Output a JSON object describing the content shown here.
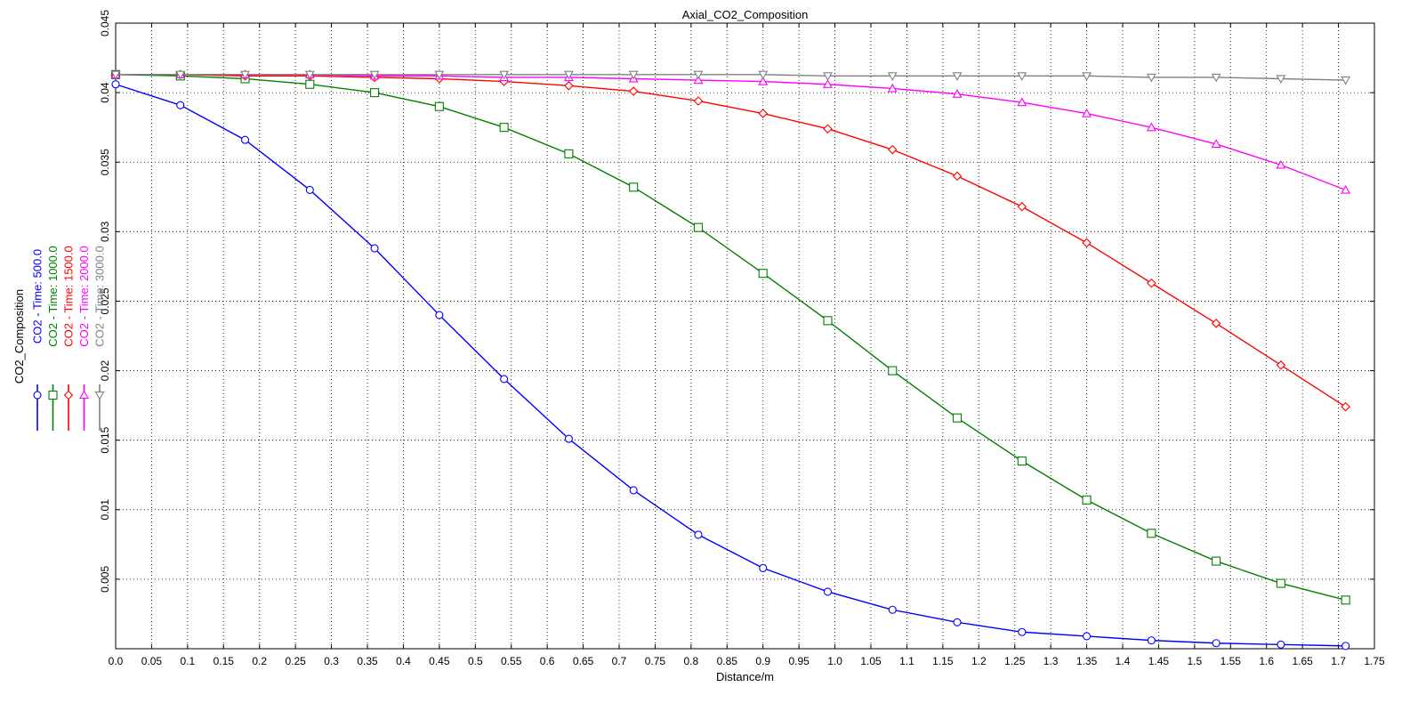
{
  "chart_data": {
    "type": "line",
    "title": "Axial_CO2_Composition",
    "xlabel": "Distance/m",
    "ylabel": "",
    "xlim": [
      0,
      1.75
    ],
    "ylim": [
      0,
      0.045
    ],
    "x_ticks": [
      0.0,
      0.05,
      0.1,
      0.15,
      0.2,
      0.25,
      0.3,
      0.35,
      0.4,
      0.45,
      0.5,
      0.55,
      0.6,
      0.65,
      0.7,
      0.75,
      0.8,
      0.85,
      0.9,
      0.95,
      1.0,
      1.05,
      1.1,
      1.15,
      1.2,
      1.25,
      1.3,
      1.35,
      1.4,
      1.45,
      1.5,
      1.55,
      1.6,
      1.65,
      1.7,
      1.75
    ],
    "x_tick_labels": [
      "0.0",
      "0.05",
      "0.1",
      "0.15",
      "0.2",
      "0.25",
      "0.3",
      "0.35",
      "0.4",
      "0.45",
      "0.5",
      "0.55",
      "0.6",
      "0.65",
      "0.7",
      "0.75",
      "0.8",
      "0.85",
      "0.9",
      "0.95",
      "1.0",
      "1.05",
      "1.1",
      "1.15",
      "1.2",
      "1.25",
      "1.3",
      "1.35",
      "1.4",
      "1.45",
      "1.5",
      "1.55",
      "1.6",
      "1.65",
      "1.7",
      "1.75"
    ],
    "y_ticks": [
      0.005,
      0.01,
      0.015,
      0.02,
      0.025,
      0.03,
      0.035,
      0.04,
      0.045
    ],
    "y_tick_labels": [
      "0.005",
      "0.01",
      "0.015",
      "0.02",
      "0.025",
      "0.03",
      "0.035",
      "0.04",
      "0.045"
    ],
    "grid": true,
    "legend_title": "CO2_Composition",
    "legend_position": "left",
    "x": [
      0.0,
      0.09,
      0.18,
      0.27,
      0.36,
      0.45,
      0.54,
      0.63,
      0.72,
      0.81,
      0.9,
      0.99,
      1.08,
      1.17,
      1.26,
      1.35,
      1.44,
      1.53,
      1.62,
      1.71
    ],
    "series": [
      {
        "name": "CO2 - Time: 500.0",
        "color": "#0000ff",
        "marker": "circle",
        "values": [
          0.0406,
          0.0391,
          0.0366,
          0.033,
          0.0288,
          0.024,
          0.0194,
          0.0151,
          0.0114,
          0.0082,
          0.0058,
          0.0041,
          0.0028,
          0.0019,
          0.0012,
          0.0009,
          0.0006,
          0.0004,
          0.0003,
          0.0002
        ]
      },
      {
        "name": "CO2 - Time: 1000.0",
        "color": "#008000",
        "marker": "square",
        "values": [
          0.0413,
          0.0412,
          0.041,
          0.0406,
          0.04,
          0.039,
          0.0375,
          0.0356,
          0.0332,
          0.0303,
          0.027,
          0.0236,
          0.02,
          0.0166,
          0.0135,
          0.0107,
          0.0083,
          0.0063,
          0.0047,
          0.0035
        ]
      },
      {
        "name": "CO2 - Time: 1500.0",
        "color": "#ff0000",
        "marker": "diamond",
        "values": [
          0.0413,
          0.0413,
          0.0412,
          0.0412,
          0.0411,
          0.041,
          0.0408,
          0.0405,
          0.0401,
          0.0394,
          0.0385,
          0.0374,
          0.0359,
          0.034,
          0.0318,
          0.0292,
          0.0263,
          0.0234,
          0.0204,
          0.0174
        ]
      },
      {
        "name": "CO2 - Time: 2000.0",
        "color": "#ff00ff",
        "marker": "triangle-up",
        "values": [
          0.0413,
          0.0413,
          0.0413,
          0.0413,
          0.0412,
          0.0412,
          0.0411,
          0.0411,
          0.041,
          0.0409,
          0.0408,
          0.0406,
          0.0403,
          0.0399,
          0.0393,
          0.0385,
          0.0375,
          0.0363,
          0.0348,
          0.033
        ]
      },
      {
        "name": "CO2 - Time: 3000.0",
        "color": "#808080",
        "marker": "triangle-down",
        "values": [
          0.0413,
          0.0413,
          0.0413,
          0.0413,
          0.0413,
          0.0413,
          0.0413,
          0.0413,
          0.0413,
          0.0413,
          0.0413,
          0.0412,
          0.0412,
          0.0412,
          0.0412,
          0.0412,
          0.0411,
          0.0411,
          0.041,
          0.0409
        ]
      }
    ]
  }
}
